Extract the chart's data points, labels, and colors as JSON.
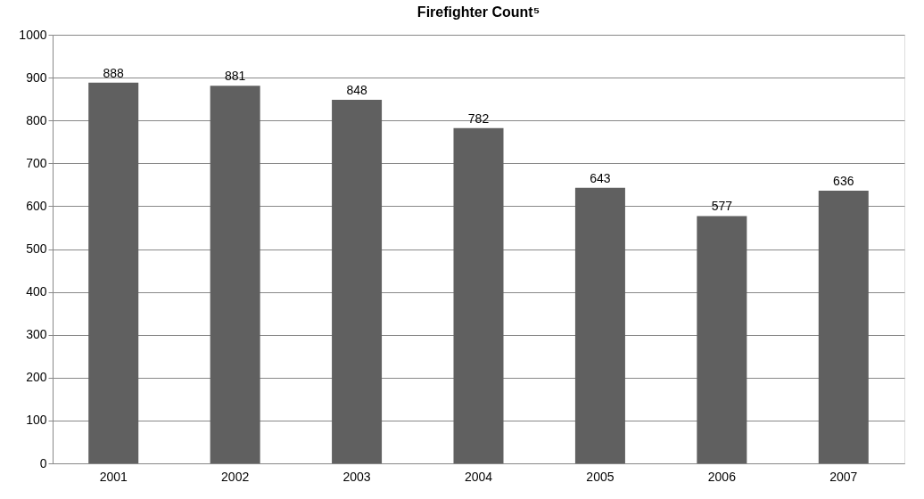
{
  "chart_data": {
    "type": "bar",
    "title": "Firefighter Count⁵",
    "categories": [
      "2001",
      "2002",
      "2003",
      "2004",
      "2005",
      "2006",
      "2007"
    ],
    "values": [
      888,
      881,
      848,
      782,
      643,
      577,
      636
    ],
    "color": "#606060",
    "ylim": [
      0,
      1000
    ],
    "yticks": [
      0,
      100,
      200,
      300,
      400,
      500,
      600,
      700,
      800,
      900,
      1000
    ],
    "grid": "y",
    "data_labels": true
  }
}
